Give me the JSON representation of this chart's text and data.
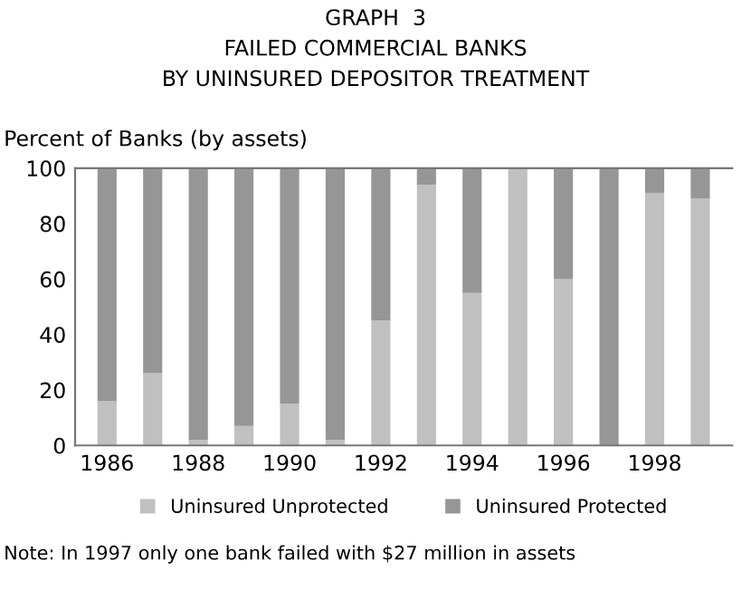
{
  "chart_data": {
    "type": "bar",
    "title": "GRAPH  3\nFAILED COMMERCIAL BANKS\nBY UNINSURED DEPOSITOR TREATMENT",
    "ylabel": "Percent of Banks (by assets)",
    "categories": [
      "1986",
      null,
      "1988",
      null,
      "1990",
      null,
      "1992",
      null,
      "1994",
      null,
      "1996",
      null,
      "1998",
      null
    ],
    "stacked": true,
    "series": [
      {
        "name": "Uninsured Unprotected",
        "color": "#c0c0c0",
        "values": [
          16,
          26,
          2,
          7,
          15,
          2,
          45,
          94,
          55,
          100,
          60,
          0,
          91,
          89
        ]
      },
      {
        "name": "Uninsured Protected",
        "color": "#969696",
        "values": [
          84,
          74,
          98,
          93,
          85,
          98,
          55,
          6,
          45,
          0,
          40,
          100,
          9,
          11
        ]
      }
    ],
    "ylim": [
      0,
      100
    ],
    "yticks": [
      0,
      20,
      40,
      60,
      80,
      100
    ],
    "grid": false,
    "legend": "bottom",
    "annotations": [
      "Note: In 1997 only one bank failed with $27 million in assets"
    ]
  }
}
